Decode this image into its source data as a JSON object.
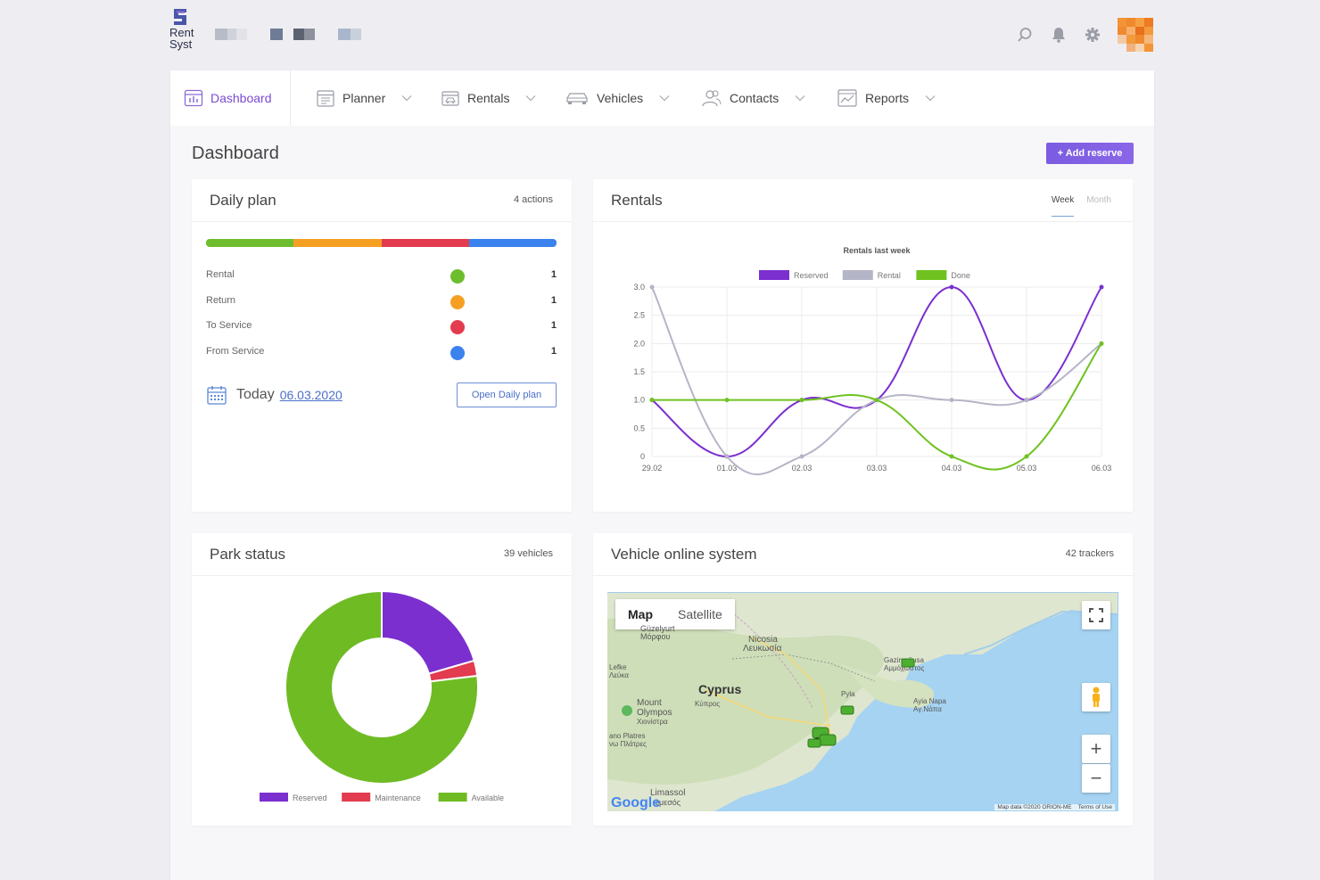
{
  "app": {
    "logo_line1": "Rent",
    "logo_line2": "Syst"
  },
  "nav": [
    {
      "label": "Dashboard",
      "icon": "dashboard-icon",
      "active": true
    },
    {
      "label": "Planner",
      "icon": "planner-icon"
    },
    {
      "label": "Rentals",
      "icon": "rentals-icon"
    },
    {
      "label": "Vehicles",
      "icon": "car-icon"
    },
    {
      "label": "Contacts",
      "icon": "contacts-icon"
    },
    {
      "label": "Reports",
      "icon": "reports-icon"
    }
  ],
  "page": {
    "title": "Dashboard",
    "add_button": "+ Add reserve"
  },
  "daily_plan": {
    "title": "Daily plan",
    "meta": "4 actions",
    "rows": [
      {
        "label": "Rental",
        "color": "#6ebd2e",
        "count": "1"
      },
      {
        "label": "Return",
        "color": "#f5a023",
        "count": "1"
      },
      {
        "label": "To Service",
        "color": "#e33b4f",
        "count": "1"
      },
      {
        "label": "From Service",
        "color": "#3a82ee",
        "count": "1"
      }
    ],
    "today_label": "Today",
    "today_date": "06.03.2020",
    "open_button": "Open Daily plan"
  },
  "rentals": {
    "title": "Rentals",
    "tab_week": "Week",
    "tab_month": "Month"
  },
  "park_status": {
    "title": "Park status",
    "meta": "39 vehicles"
  },
  "vehicle_online": {
    "title": "Vehicle online system",
    "meta": "42 trackers",
    "map_button": "Map",
    "satellite_button": "Satellite",
    "labels": {
      "cyprus": "Cyprus",
      "cyprus_gr": "Κύπρος",
      "nicosia": "Nicosia",
      "nicosia_gr": "Λευκωσία",
      "mount_olympos": "Mount",
      "olympos": "Olympos",
      "olympos_gr": "Χιονίστρα",
      "platres": "ano Platres",
      "platres_gr": "νω Πλάτρες",
      "lefka": "Lefke",
      "lefka_gr": "Λεύκα",
      "limassol": "Limassol",
      "limassol_gr": "εμεσός",
      "ayia_napa": "Ayia Napa",
      "ayia_napa_gr": "Αγ.Νάπα",
      "gaz": "Gazimağusa",
      "gaz_gr": "Αμμόχωστος",
      "guzelyurt": "Güzelyurt",
      "guzelyurt_gr": "Μόρφου",
      "pyla": "Pyla",
      "google": "Google",
      "footer_data": "Map data ©2020 ORION-ME",
      "footer_terms": "Terms of Use"
    }
  },
  "chart_data": [
    {
      "type": "line",
      "title": "Rentals last week",
      "x": [
        "29.02",
        "01.03",
        "02.03",
        "03.03",
        "04.03",
        "05.03",
        "06.03"
      ],
      "series": [
        {
          "name": "Reserved",
          "color": "#7b2fcf",
          "values": [
            1,
            0,
            1,
            1,
            3,
            1,
            3
          ]
        },
        {
          "name": "Rental",
          "color": "#b5b5c8",
          "values": [
            3,
            0,
            0,
            1,
            1,
            1,
            2
          ]
        },
        {
          "name": "Done",
          "color": "#6fc220",
          "values": [
            1,
            1,
            1,
            1,
            0,
            0,
            2
          ]
        }
      ],
      "ylim": [
        0,
        3
      ],
      "yticks": [
        "0",
        "0.5",
        "1.0",
        "1.5",
        "2.0",
        "2.5",
        "3.0"
      ],
      "grid": true,
      "legend": "top"
    },
    {
      "type": "pie",
      "title": "",
      "categories": [
        "Reserved",
        "Maintenance",
        "Available"
      ],
      "colors": [
        "#7b2fcf",
        "#e33b4f",
        "#6fbb24"
      ],
      "values": [
        8,
        1,
        30
      ],
      "donut": true,
      "legend": "bottom"
    }
  ]
}
